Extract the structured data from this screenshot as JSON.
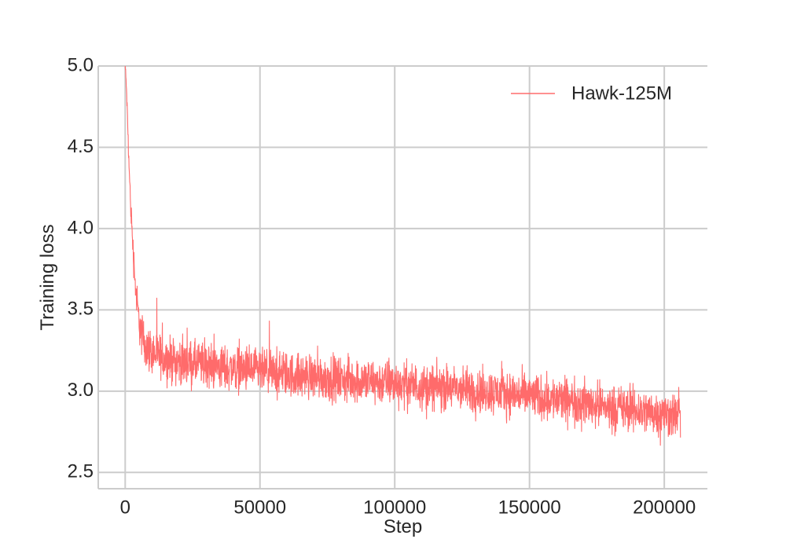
{
  "chart_data": {
    "type": "line",
    "title": "",
    "xlabel": "Step",
    "ylabel": "Training loss",
    "xlim": [
      -10000,
      216000
    ],
    "ylim": [
      2.4,
      5.0
    ],
    "xticks": [
      0,
      50000,
      100000,
      150000,
      200000
    ],
    "xtick_labels": [
      "0",
      "50000",
      "100000",
      "150000",
      "200000"
    ],
    "yticks": [
      2.5,
      3.0,
      3.5,
      4.0,
      4.5,
      5.0
    ],
    "ytick_labels": [
      "2.5",
      "3.0",
      "3.5",
      "4.0",
      "4.5",
      "5.0"
    ],
    "grid": true,
    "legend_position": "top-right",
    "series": [
      {
        "name": "Hawk-125M",
        "color": "#ff6b6b",
        "x": [
          0,
          500,
          1000,
          1500,
          2000,
          2500,
          3000,
          4000,
          5000,
          6000,
          7000,
          8000,
          10000,
          12000,
          15000,
          20000,
          25000,
          30000,
          40000,
          50000,
          60000,
          70000,
          80000,
          90000,
          100000,
          110000,
          120000,
          130000,
          140000,
          150000,
          160000,
          170000,
          180000,
          190000,
          200000,
          206000
        ],
        "y": [
          5.0,
          4.85,
          4.6,
          4.35,
          4.15,
          4.0,
          3.85,
          3.6,
          3.45,
          3.35,
          3.3,
          3.27,
          3.24,
          3.22,
          3.2,
          3.18,
          3.17,
          3.16,
          3.14,
          3.12,
          3.1,
          3.09,
          3.07,
          3.06,
          3.05,
          3.03,
          3.02,
          3.0,
          2.99,
          2.97,
          2.95,
          2.93,
          2.9,
          2.88,
          2.86,
          2.85
        ],
        "noise_band": [
          0.05,
          0.06,
          0.08,
          0.1,
          0.12,
          0.12,
          0.14,
          0.16,
          0.18,
          0.2,
          0.2,
          0.2,
          0.2,
          0.2,
          0.2,
          0.2,
          0.2,
          0.2,
          0.2,
          0.2,
          0.2,
          0.2,
          0.2,
          0.2,
          0.2,
          0.2,
          0.2,
          0.2,
          0.2,
          0.2,
          0.2,
          0.2,
          0.2,
          0.2,
          0.2,
          0.2
        ]
      }
    ]
  }
}
